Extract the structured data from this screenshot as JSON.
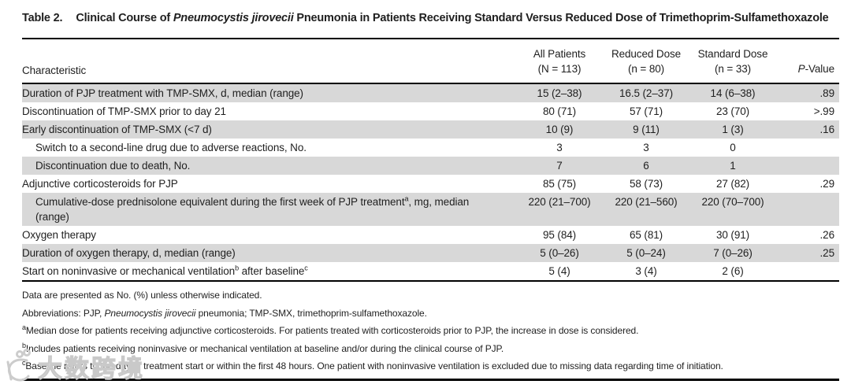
{
  "title": {
    "prefix": "Table 2.",
    "before_italic": "Clinical Course of ",
    "italic": "Pneumocystis jirovecii",
    "after_italic": " Pneumonia in Patients Receiving Standard Versus Reduced Dose of Trimethoprim-Sulfamethoxazole"
  },
  "table": {
    "char_header": "Characteristic",
    "col_headers": [
      {
        "line1": "All Patients",
        "line2": "(N = 113)"
      },
      {
        "line1": "Reduced Dose",
        "line2": "(n = 80)"
      },
      {
        "line1": "Standard Dose",
        "line2": "(n = 33)"
      }
    ],
    "p_header": {
      "italic": "P",
      "rest": "-Value"
    },
    "rows": [
      {
        "shaded": true,
        "indent": false,
        "label": [
          {
            "t": "Duration of PJP treatment with TMP-SMX, d, median (range)"
          }
        ],
        "values": [
          "15 (2–38)",
          "16.5 (2–37)",
          "14 (6–38)"
        ],
        "p": ".89"
      },
      {
        "shaded": false,
        "indent": false,
        "label": [
          {
            "t": "Discontinuation of TMP-SMX prior to day 21"
          }
        ],
        "values": [
          "80 (71)",
          "57 (71)",
          "23 (70)"
        ],
        "p": ">.99"
      },
      {
        "shaded": true,
        "indent": false,
        "label": [
          {
            "t": "Early discontinuation of TMP-SMX (<7 d)"
          }
        ],
        "values": [
          "10 (9)",
          "9 (11)",
          "1 (3)"
        ],
        "p": ".16"
      },
      {
        "shaded": false,
        "indent": true,
        "label": [
          {
            "t": "Switch to a second-line drug due to adverse reactions, No."
          }
        ],
        "values": [
          "3",
          "3",
          "0"
        ],
        "p": ""
      },
      {
        "shaded": true,
        "indent": true,
        "label": [
          {
            "t": "Discontinuation due to death, No."
          }
        ],
        "values": [
          "7",
          "6",
          "1"
        ],
        "p": ""
      },
      {
        "shaded": false,
        "indent": false,
        "label": [
          {
            "t": "Adjunctive corticosteroids for PJP"
          }
        ],
        "values": [
          "85 (75)",
          "58 (73)",
          "27 (82)"
        ],
        "p": ".29"
      },
      {
        "shaded": true,
        "indent": true,
        "label": [
          {
            "t": "Cumulative-dose prednisolone equivalent during the first week of PJP treatment"
          },
          {
            "s": "a"
          },
          {
            "t": ", mg, median"
          },
          {
            "br": true
          },
          {
            "t": "(range)"
          }
        ],
        "values": [
          "220 (21–700)",
          "220 (21–560)",
          "220 (70–700)"
        ],
        "p": ""
      },
      {
        "shaded": false,
        "indent": false,
        "label": [
          {
            "t": "Oxygen therapy"
          }
        ],
        "values": [
          "95 (84)",
          "65 (81)",
          "30 (91)"
        ],
        "p": ".26"
      },
      {
        "shaded": true,
        "indent": false,
        "label": [
          {
            "t": "Duration of oxygen therapy, d, median (range)"
          }
        ],
        "values": [
          "5 (0–26)",
          "5 (0–24)",
          "7 (0–26)"
        ],
        "p": ".25"
      },
      {
        "shaded": false,
        "indent": false,
        "label": [
          {
            "t": "Start on noninvasive or mechanical ventilation"
          },
          {
            "s": "b"
          },
          {
            "t": " after baseline"
          },
          {
            "s": "c"
          }
        ],
        "values": [
          "5 (4)",
          "3 (4)",
          "2 (6)"
        ],
        "p": ""
      }
    ]
  },
  "footnotes": [
    [
      {
        "t": "Data are presented as No. (%) unless otherwise indicated."
      }
    ],
    [
      {
        "t": "Abbreviations: PJP, "
      },
      {
        "i": "Pneumocystis jirovecii"
      },
      {
        "t": " pneumonia; TMP-SMX, trimethoprim-sulfamethoxazole."
      }
    ],
    [
      {
        "s": "a"
      },
      {
        "t": "Median dose for patients receiving adjunctive corticosteroids. For patients treated with corticosteroids prior to PJP, the increase in dose is considered."
      }
    ],
    [
      {
        "s": "b"
      },
      {
        "t": "Includes patients receiving noninvasive or mechanical ventilation at baseline and/or during the clinical course of PJP."
      }
    ],
    [
      {
        "s": "c"
      },
      {
        "t": "Baseline refers to the day of treatment start or within the first 48 hours. One patient with noninvasive ventilation is excluded due to missing data regarding time of initiation."
      }
    ]
  ],
  "watermark": {
    "text": "大数跨境"
  },
  "colors": {
    "row_shade": "#d8d8d8",
    "rule": "#000000",
    "watermark": "#c9c9c9"
  }
}
